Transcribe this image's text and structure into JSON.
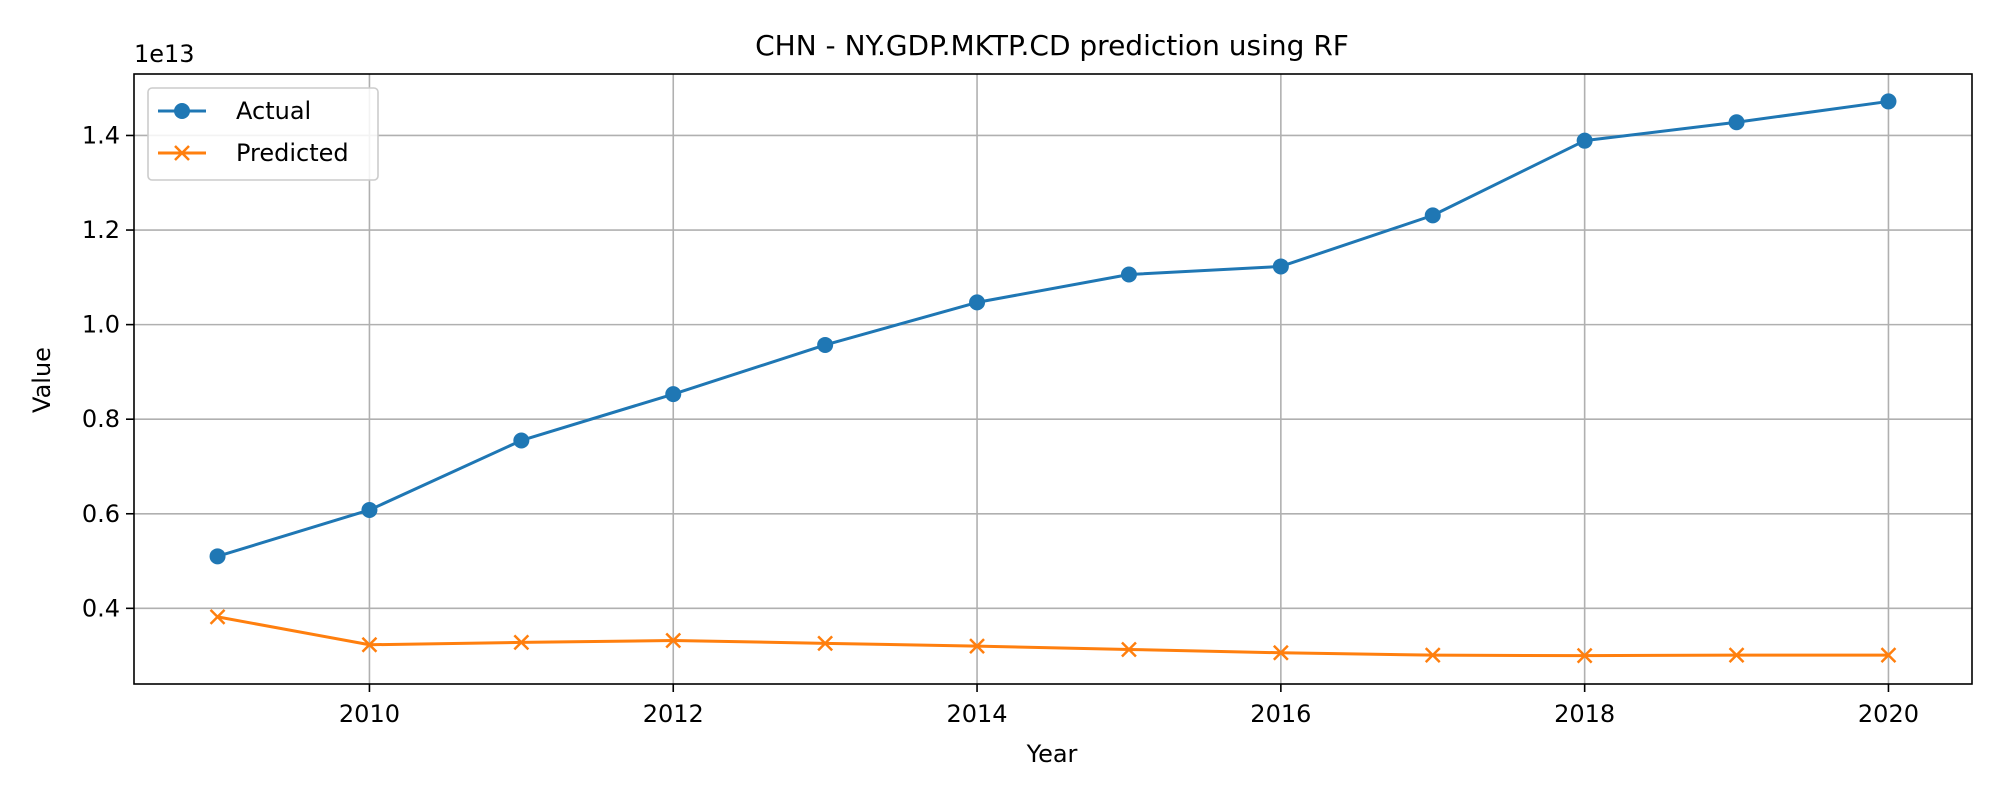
{
  "chart_data": {
    "type": "line",
    "title": "CHN - NY.GDP.MKTP.CD prediction using RF",
    "xlabel": "Year",
    "ylabel": "Value",
    "offset_label": "1e13",
    "x": [
      2009,
      2010,
      2011,
      2012,
      2013,
      2014,
      2015,
      2016,
      2017,
      2018,
      2019,
      2020
    ],
    "series": [
      {
        "name": "Actual",
        "color": "#1f77b4",
        "marker": "circle",
        "values": [
          0.51,
          0.608,
          0.755,
          0.853,
          0.957,
          1.047,
          1.106,
          1.123,
          1.231,
          1.389,
          1.428,
          1.472
        ]
      },
      {
        "name": "Predicted",
        "color": "#ff7f0e",
        "marker": "x",
        "values": [
          0.382,
          0.323,
          0.328,
          0.332,
          0.326,
          0.32,
          0.313,
          0.306,
          0.301,
          0.3,
          0.301,
          0.301
        ]
      }
    ],
    "xlim": [
      2008.45,
      2020.55
    ],
    "ylim": [
      0.24,
      1.53
    ],
    "xticks": [
      2010,
      2012,
      2014,
      2016,
      2018,
      2020
    ],
    "yticks": [
      0.4,
      0.6,
      0.8,
      1.0,
      1.2,
      1.4
    ],
    "ytick_labels": [
      "0.4",
      "0.6",
      "0.8",
      "1.0",
      "1.2",
      "1.4"
    ],
    "grid": true,
    "legend_position": "top-left"
  }
}
